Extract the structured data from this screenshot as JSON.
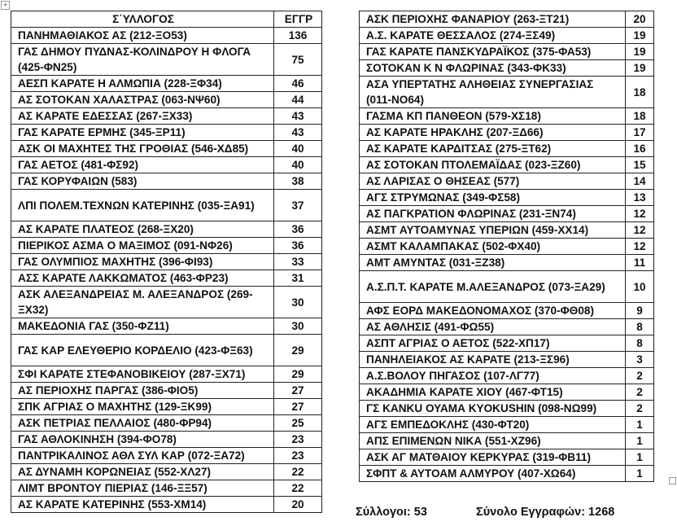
{
  "left_table": {
    "headers": {
      "club": "Σ΄ΥΛΛΟΓΟΣ",
      "count": "ΕΓΓΡ"
    },
    "rows": [
      {
        "club": "ΠΑΝΗΜΑΘΙΑΚΟΣ ΑΣ (212-ΞΟ53)",
        "count": "136"
      },
      {
        "club": "ΓΑΣ ΔΗΜΟΥ ΠΥΔΝΑΣ-ΚΟΛΙΝΔΡΟΥ Η ΦΛΟΓΑ (425-ΦΝ25)",
        "count": "75",
        "double": true
      },
      {
        "club": "ΑΕΣΠ ΚΑΡΑΤΕ Η ΑΛΜΩΠΙΑ (228-ΞΦ34)",
        "count": "46"
      },
      {
        "club": "ΑΣ ΣΟΤΟΚΑΝ ΧΑΛΑΣΤΡΑΣ (063-ΝΨ60)",
        "count": "44"
      },
      {
        "club": "ΑΣ ΚΑΡΑΤΕ ΕΔΕΣΣΑΣ (267-ΞΧ33)",
        "count": "43"
      },
      {
        "club": "ΓΑΣ ΚΑΡΑΤΕ ΕΡΜΗΣ (345-ΞΡ11)",
        "count": "43"
      },
      {
        "club": "ΑΣΚ ΟΙ ΜΑΧΗΤΕΣ ΤΗΣ ΓΡΟΘΙΑΣ (546-ΧΔ85)",
        "count": "40"
      },
      {
        "club": "ΓΑΣ ΑΕΤΟΣ (481-ΦΣ92)",
        "count": "40"
      },
      {
        "club": "ΓΑΣ ΚΟΡΥΦΑΙΩΝ (583)",
        "count": "38"
      },
      {
        "club": "ΛΠΙ ΠΟΛΕΜ.ΤΕΧΝΩΝ ΚΑΤΕΡΙΝΗΣ (035-ΞΑ91)",
        "count": "37",
        "double": true
      },
      {
        "club": "ΑΣ ΚΑΡΑΤΕ ΠΛΑΤΕΟΣ (268-ΞΧ20)",
        "count": "36"
      },
      {
        "club": "ΠΙΕΡΙΚΟΣ ΑΣΜΑ Ο ΜΑΞΙΜΟΣ (091-ΝΦ26)",
        "count": "36"
      },
      {
        "club": "ΓΑΣ ΟΛΥΜΠΙΟΣ ΜΑΧΗΤΗΣ (396-ΦΙ93)",
        "count": "33"
      },
      {
        "club": "ΑΣΣ ΚΑΡΑΤΕ ΛΑΚΚΩΜΑΤΟΣ (463-ΦΡ23)",
        "count": "31"
      },
      {
        "club": "ΑΣΚ ΑΛΕΞΑΝΔΡΕΙΑΣ Μ. ΑΛΕΞΑΝΔΡΟΣ (269-ΞΧ32)",
        "count": "30",
        "double": true
      },
      {
        "club": "ΜΑΚΕΔΟΝΙΑ ΓΑΣ (350-ΦΖ11)",
        "count": "30"
      },
      {
        "club": "ΓΑΣ ΚΑΡ ΕΛΕΥΘΕΡΙΟ ΚΟΡΔΕΛΙΟ (423-ΦΞ63)",
        "count": "29",
        "double": true
      },
      {
        "club": "ΣΦΙ ΚΑΡΑΤΕ ΣΤΕΦΑΝΟΒΙΚΕΙΟΥ (287-ΞΧ71)",
        "count": "29"
      },
      {
        "club": "ΑΣ ΠΕΡΙΟΧΗΣ ΠΑΡΓΑΣ (386-ΦΙΟ5)",
        "count": "27"
      },
      {
        "club": "ΣΠΚ ΑΓΡΙΑΣ Ο ΜΑΧΗΤΗΣ (129-ΞΚ99)",
        "count": "27"
      },
      {
        "club": "ΑΣΚ ΠΕΤΡΙΑΣ ΠΕΛΛΑΙΟΣ (480-ΦΡ94)",
        "count": "25"
      },
      {
        "club": "ΓΑΣ ΑΘΛΟΚΙΝΗΣΗ (394-ΦΟ78)",
        "count": "23"
      },
      {
        "club": "ΠΑΝΤΡΙΚΑΛΙΝΟΣ ΑΘΛ ΣΥΛ ΚΑΡ (072-ΞΑ72)",
        "count": "23"
      },
      {
        "club": "ΑΣ ΔΥΝΑΜΗ ΚΟΡΩΝΕΙΑΣ (552-ΧΛ27)",
        "count": "22"
      },
      {
        "club": "ΛΙΜΤ ΒΡΟΝΤΟΥ ΠΙΕΡΙΑΣ (146-ΞΞ57)",
        "count": "22"
      },
      {
        "club": "ΑΣ ΚΑΡΑΤΕ ΚΑΤΕΡΙΝΗΣ (553-ΧΜ14)",
        "count": "20"
      }
    ]
  },
  "right_table": {
    "rows": [
      {
        "club": "ΑΣΚ ΠΕΡΙΟΧΗΣ ΦΑΝΑΡΙΟΥ (263-ΞΤ21)",
        "count": "20"
      },
      {
        "club": "Α.Σ. ΚΑΡΑΤΕ ΘΕΣΣΑΛΟΣ (274-ΞΣ49)",
        "count": "19"
      },
      {
        "club": "ΓΑΣ ΚΑΡΑΤΕ ΠΑΝΣΚΥΔΡΑΪΚΟΣ (375-ΦΑ53)",
        "count": "19"
      },
      {
        "club": "ΣΟΤΟΚΑΝ Κ Ν ΦΛΩΡΙΝΑΣ (343-ΦΚ33)",
        "count": "19"
      },
      {
        "club": "ΑΣΑ ΥΠΕΡΤΑΤΗΣ ΑΛΗΘΕΙΑΣ ΣΥΝΕΡΓΑΣΙΑΣ (011-ΝΟ64)",
        "count": "18",
        "double": true
      },
      {
        "club": "ΓΑΣΜΑ ΚΠ ΠΑΝΘΕΟΝ (579-ΧΣ18)",
        "count": "18"
      },
      {
        "club": "ΑΣ ΚΑΡΑΤΕ ΗΡΑΚΛΗΣ (207-ΞΔ66)",
        "count": "17"
      },
      {
        "club": "ΑΣ ΚΑΡΑΤΕ ΚΑΡΔΙΤΣΑΣ (275-ΞΤ62)",
        "count": "16"
      },
      {
        "club": "ΑΣ ΣΟΤΟΚΑΝ ΠΤΟΛΕΜΑΪΔΑΣ (023-ΞΖ60)",
        "count": "15"
      },
      {
        "club": "ΑΣ ΛΑΡΙΣΑΣ Ο ΘΗΣΕΑΣ (577)",
        "count": "14"
      },
      {
        "club": "ΑΓΣ ΣΤΡΥΜΩΝΑΣ (349-ΦΣ58)",
        "count": "13"
      },
      {
        "club": "ΑΣ ΠΑΓΚΡΑΤΙΟΝ ΦΛΩΡΙΝΑΣ (231-ΞΝ74)",
        "count": "12"
      },
      {
        "club": "ΑΣΜΤ ΑΥΤΟΑΜΥΝΑΣ ΥΠΕΡΙΩΝ (459-ΧΧ14)",
        "count": "12"
      },
      {
        "club": "ΑΣΜΤ ΚΑΛΑΜΠΑΚΑΣ (502-ΦΧ40)",
        "count": "12"
      },
      {
        "club": "ΑΜΤ ΑΜΥΝΤΑΣ (031-ΞΖ38)",
        "count": "11"
      },
      {
        "club": "Α.Σ.Π.Τ. ΚΑΡΑΤΕ Μ.ΑΛΕΞΑΝΔΡΟΣ (073-ΞΑ29)",
        "count": "10",
        "double": true
      },
      {
        "club": "ΑΦΣ ΕΟΡΔ ΜΑΚΕΔΟΝΟΜΑΧΟΣ (370-ΦΘ08)",
        "count": "9"
      },
      {
        "club": "ΑΣ ΑΘΛΗΣΙΣ (491-ΦΩ55)",
        "count": "8"
      },
      {
        "club": "ΑΣΠΤ ΑΓΡΙΑΣ Ο ΑΕΤΟΣ (522-ΧΠ17)",
        "count": "8"
      },
      {
        "club": "ΠΑΝΗΛΕΙΑΚΟΣ ΑΣ ΚΑΡΑΤΕ (213-ΞΣ96)",
        "count": "3"
      },
      {
        "club": "Α.Σ.ΒΟΛΟΥ ΠΗΓΑΣΟΣ (107-ΛΓ77)",
        "count": "2"
      },
      {
        "club": "ΑΚΑΔΗΜΙΑ ΚΑΡΑΤΕ ΧΙΟΥ (467-ΦΤ15)",
        "count": "2"
      },
      {
        "club": "ΓΣ KANKU ΟΥΑΜΑ KYOKUSHIN (098-ΝΩ99)",
        "count": "2"
      },
      {
        "club": "ΑΓΣ ΕΜΠΕΔΟΚΛΗΣ (430-ΦΤ20)",
        "count": "1"
      },
      {
        "club": "ΑΠΣ ΕΠΙΜΕΝΩΝ ΝΙΚΑ (551-ΧΖ96)",
        "count": "1"
      },
      {
        "club": "ΑΣΚ ΑΓ ΜΑΤΘΑΙΟΥ ΚΕΡΚΥΡΑΣ (319-ΦΒ11)",
        "count": "1"
      },
      {
        "club": "ΣΦΠΤ & ΑΥΤΟΑΜ ΑΛΜΥΡΟΥ (407-ΧΩ64)",
        "count": "1"
      }
    ]
  },
  "footer": {
    "clubs": "Σύλλογοι: 53",
    "total": "Σύνολο Εγγραφών: 1268"
  },
  "icons": {
    "move_handle": "move-icon",
    "resize_handle": "resize-icon"
  }
}
